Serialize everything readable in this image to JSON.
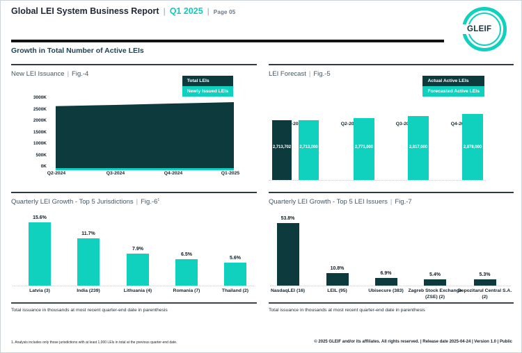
{
  "sep": "|",
  "header": {
    "title": "Global LEI System Business Report",
    "period": "Q1 2025",
    "page": "Page 05",
    "logo": "GLEIF"
  },
  "section_heading": "Growth in Total Number of Active LEIs",
  "colors": {
    "teal": "#10d1bd",
    "dark_teal": "#0d3a3d",
    "header_navy": "#212936",
    "heading_blue": "#1d4355"
  },
  "chart_data": [
    {
      "id": "fig4",
      "type": "area",
      "title": "New LEI Issuance",
      "fig": "Fig.-4",
      "x": [
        "Q2-2024",
        "Q3-2024",
        "Q4-2024",
        "Q1-2025"
      ],
      "y_ticks": [
        "3000K",
        "2500K",
        "2000K",
        "1500K",
        "1000K",
        "500K",
        "0K"
      ],
      "ylim": [
        0,
        3000000
      ],
      "legend_position": "top-right",
      "series": [
        {
          "name": "Total LEIs",
          "color": "#0d3a3d",
          "values": [
            2550000,
            2600000,
            2660000,
            2713702
          ],
          "values_estimated": true
        },
        {
          "name": "Newly Issued LEIs",
          "color": "#10d1bd",
          "values": [
            65000,
            65000,
            65000,
            65000
          ],
          "values_estimated": true
        }
      ]
    },
    {
      "id": "fig5",
      "type": "bar",
      "title": "LEI Forecast",
      "fig": "Fig.-5",
      "categories": [
        "Q1-2025",
        "Q2-2025",
        "Q3-2025",
        "Q4-2025"
      ],
      "legend_position": "top-right",
      "series": [
        {
          "name": "Actual Active LEIs",
          "color": "#0d3a3d",
          "values": [
            2713702,
            null,
            null,
            null
          ]
        },
        {
          "name": "Forecasted Active LEIs",
          "color": "#10d1bd",
          "values": [
            2713000,
            2771000,
            2817000,
            2878000
          ]
        }
      ],
      "bar_labels": [
        "2,713,702",
        "2,713,000",
        "2,771,000",
        "2,817,000",
        "2,878,000"
      ]
    },
    {
      "id": "fig6",
      "type": "bar",
      "title": "Quarterly LEI Growth - Top 5 Jurisdictions",
      "fig": "Fig.-6",
      "fig_sup": "1",
      "categories": [
        "Latvia (3)",
        "India (239)",
        "Lithuania (4)",
        "Romania (7)",
        "Thailand (2)"
      ],
      "values": [
        15.6,
        11.7,
        7.9,
        6.5,
        5.6
      ],
      "value_labels": [
        "15.6%",
        "11.7%",
        "7.9%",
        "6.5%",
        "5.6%"
      ],
      "bar_color": "#10d1bd",
      "note": "Total issuance in thousands at most recent quarter-end date in parenthesis"
    },
    {
      "id": "fig7",
      "type": "bar",
      "title": "Quarterly LEI Growth - Top 5 LEI Issuers",
      "fig": "Fig.-7",
      "categories": [
        "NasdaqLEI (16)",
        "LEIL (95)",
        "Ubisecure (383)",
        "Zagreb Stock Exchange (ZSE) (2)",
        "Depozitarul Central S.A. (2)"
      ],
      "values": [
        53.8,
        10.8,
        6.9,
        5.4,
        5.3
      ],
      "value_labels": [
        "53.8%",
        "10.8%",
        "6.9%",
        "5.4%",
        "5.3%"
      ],
      "bar_color": "#0d3a3d",
      "note": "Total issuance in thousands at most recent quarter-end date in parenthesis"
    }
  ],
  "footer": {
    "footnote": "1. Analysis includes only those jurisdictions with at least 1,000 LEIs in total at the previous quarter-end date.",
    "copyright_line": "© 2025 GLEIF and/or its affiliates. All rights reserved. | Release date 2025-04-24 | Version 1.0 | Public"
  }
}
